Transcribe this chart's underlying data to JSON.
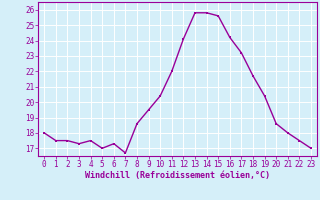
{
  "x": [
    0,
    1,
    2,
    3,
    4,
    5,
    6,
    7,
    8,
    9,
    10,
    11,
    12,
    13,
    14,
    15,
    16,
    17,
    18,
    19,
    20,
    21,
    22,
    23
  ],
  "y": [
    18.0,
    17.5,
    17.5,
    17.3,
    17.5,
    17.0,
    17.3,
    16.7,
    18.6,
    19.5,
    20.4,
    22.0,
    24.1,
    25.8,
    25.8,
    25.6,
    24.2,
    23.2,
    21.7,
    20.4,
    18.6,
    18.0,
    17.5,
    17.0
  ],
  "line_color": "#990099",
  "marker_color": "#990099",
  "bg_color": "#d5eff9",
  "grid_color": "#ffffff",
  "xlabel": "Windchill (Refroidissement éolien,°C)",
  "xlabel_color": "#990099",
  "ylim": [
    16.5,
    26.5
  ],
  "yticks": [
    17,
    18,
    19,
    20,
    21,
    22,
    23,
    24,
    25,
    26
  ],
  "xticks": [
    0,
    1,
    2,
    3,
    4,
    5,
    6,
    7,
    8,
    9,
    10,
    11,
    12,
    13,
    14,
    15,
    16,
    17,
    18,
    19,
    20,
    21,
    22,
    23
  ],
  "xlim": [
    -0.5,
    23.5
  ],
  "tick_label_color": "#990099",
  "tick_label_size": 5.5,
  "xlabel_size": 6.0,
  "line_width": 1.0,
  "marker_size": 2.0
}
